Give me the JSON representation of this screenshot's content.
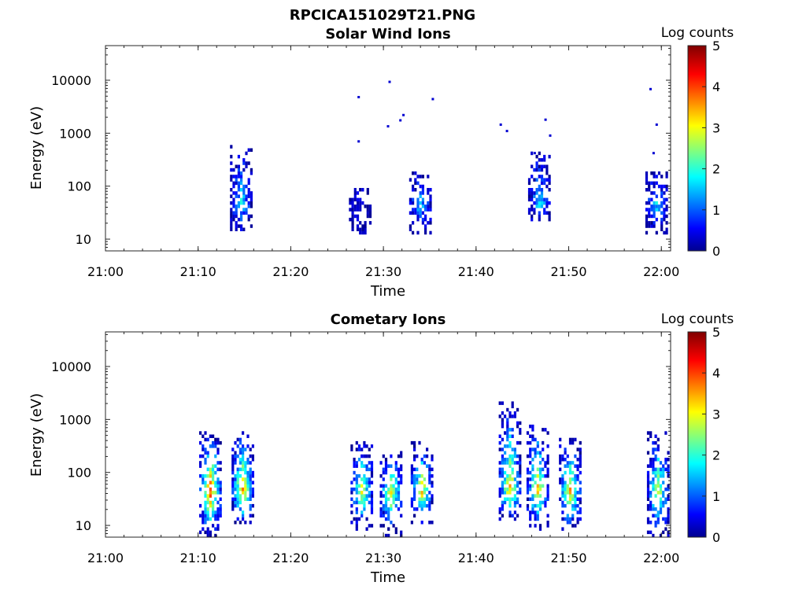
{
  "figure_title": "RPCICA151029T21.PNG",
  "chart_data": [
    {
      "type": "heatmap",
      "title": "Solar Wind Ions",
      "xlabel": "Time",
      "ylabel": "Energy (eV)",
      "colorbar_label": "Log counts",
      "colormap": "jet",
      "y_scale": "log",
      "xlim": [
        "21:00",
        "22:01"
      ],
      "ylim": [
        6,
        45000
      ],
      "clim": [
        0,
        5
      ],
      "x_ticks": [
        "21:00",
        "21:10",
        "21:20",
        "21:30",
        "21:40",
        "21:50",
        "22:00"
      ],
      "y_ticks": [
        "10",
        "100",
        "1000",
        "10000"
      ],
      "c_ticks": [
        "0",
        "1",
        "2",
        "3",
        "4",
        "5"
      ],
      "bursts": [
        {
          "time": "21:14:40",
          "e_low": 12,
          "e_high": 550,
          "peak_log": 1.8
        },
        {
          "time": "21:27:30",
          "e_low": 12,
          "e_high": 100,
          "peak_log": 0.4
        },
        {
          "time": "21:34:00",
          "e_low": 12,
          "e_high": 170,
          "peak_log": 1.6
        },
        {
          "time": "21:46:50",
          "e_low": 18,
          "e_high": 400,
          "peak_log": 1.8
        },
        {
          "time": "21:59:30",
          "e_low": 12,
          "e_high": 170,
          "peak_log": 1.7
        }
      ],
      "isolated_points": [
        {
          "time": "21:27:20",
          "energy": 4800
        },
        {
          "time": "21:27:20",
          "energy": 700
        },
        {
          "time": "21:30:40",
          "energy": 9300
        },
        {
          "time": "21:30:30",
          "energy": 1350
        },
        {
          "time": "21:32:10",
          "energy": 2200
        },
        {
          "time": "21:31:50",
          "energy": 1750
        },
        {
          "time": "21:35:20",
          "energy": 4400
        },
        {
          "time": "21:42:40",
          "energy": 1450
        },
        {
          "time": "21:43:20",
          "energy": 1100
        },
        {
          "time": "21:46:20",
          "energy": 420
        },
        {
          "time": "21:47:30",
          "energy": 1800
        },
        {
          "time": "21:48:00",
          "energy": 900
        },
        {
          "time": "21:58:50",
          "energy": 6800
        },
        {
          "time": "21:59:30",
          "energy": 1450
        },
        {
          "time": "21:59:10",
          "energy": 420
        }
      ]
    },
    {
      "type": "heatmap",
      "title": "Cometary Ions",
      "xlabel": "Time",
      "ylabel": "Energy (eV)",
      "colorbar_label": "Log counts",
      "colormap": "jet",
      "y_scale": "log",
      "xlim": [
        "21:00",
        "22:01"
      ],
      "ylim": [
        6,
        45000
      ],
      "clim": [
        0,
        5
      ],
      "x_ticks": [
        "21:00",
        "21:10",
        "21:20",
        "21:30",
        "21:40",
        "21:50",
        "22:00"
      ],
      "y_ticks": [
        "10",
        "100",
        "1000",
        "10000"
      ],
      "c_ticks": [
        "0",
        "1",
        "2",
        "3",
        "4",
        "5"
      ],
      "bursts": [
        {
          "time": "21:11:20",
          "e_low": 6,
          "e_high": 550,
          "peak_log": 4.2
        },
        {
          "time": "21:14:50",
          "e_low": 10,
          "e_high": 600,
          "peak_log": 3.8
        },
        {
          "time": "21:27:40",
          "e_low": 8,
          "e_high": 380,
          "peak_log": 3.0
        },
        {
          "time": "21:30:50",
          "e_low": 6,
          "e_high": 250,
          "peak_log": 3.2
        },
        {
          "time": "21:34:10",
          "e_low": 10,
          "e_high": 350,
          "peak_log": 3.4
        },
        {
          "time": "21:43:40",
          "e_low": 12,
          "e_high": 2000,
          "peak_log": 3.5
        },
        {
          "time": "21:46:40",
          "e_low": 8,
          "e_high": 800,
          "peak_log": 3.4
        },
        {
          "time": "21:50:10",
          "e_low": 8,
          "e_high": 420,
          "peak_log": 3.5
        },
        {
          "time": "21:59:40",
          "e_low": 6,
          "e_high": 550,
          "peak_log": 3.0
        }
      ],
      "isolated_points": []
    }
  ]
}
